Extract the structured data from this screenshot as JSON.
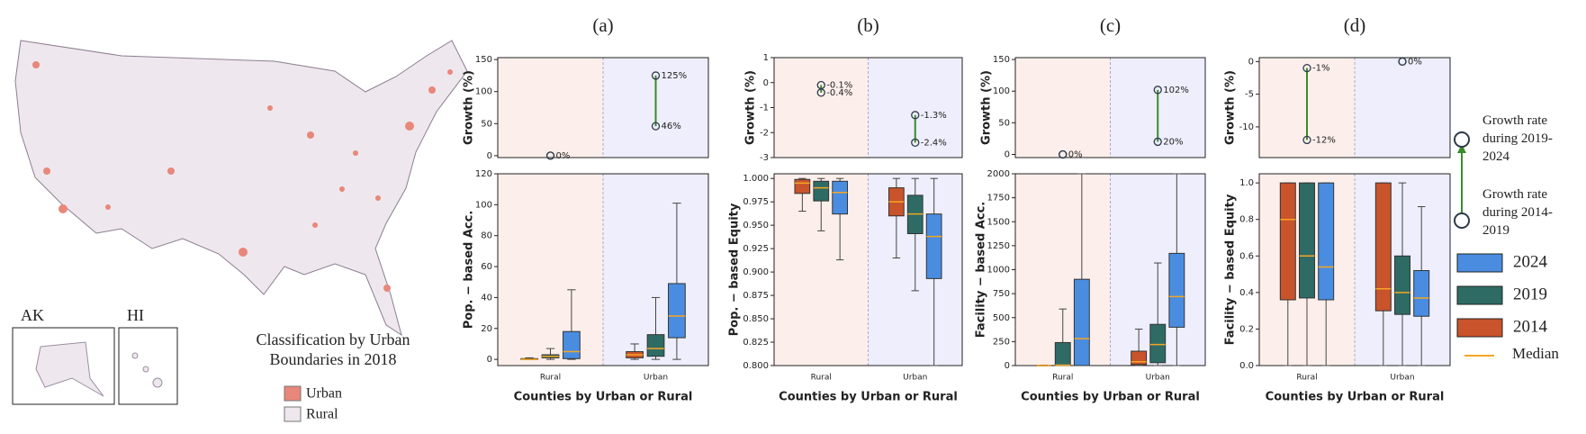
{
  "map": {
    "title": "Classification by Urban Boundaries in 2018",
    "insets": [
      "AK",
      "HI"
    ],
    "legend": [
      {
        "name": "Urban",
        "color": "#e8877a"
      },
      {
        "name": "Rural",
        "color": "#efe7ee"
      }
    ]
  },
  "legend": {
    "growth_later": "Growth rate during 2019-2024",
    "growth_earlier": "Growth rate during 2014-2019",
    "median": "Median",
    "median_color": "#f5a623"
  },
  "chart_data": [
    {
      "type": "dumbbell",
      "title": "(a)",
      "ylabel": "Growth (%)",
      "categories": [
        null,
        null
      ],
      "region_colors": [
        "#fcefeb",
        "#eeeefc"
      ],
      "ylim": [
        -3,
        153
      ],
      "yticks": [
        0,
        50,
        100,
        150
      ],
      "line_color": "#3a8a2a",
      "marker_color": "#2d3a4a",
      "earlier": {
        "values": [
          0,
          46
        ],
        "value_labels": [
          "0%",
          "46%"
        ]
      },
      "later": {
        "values": [
          0,
          125
        ],
        "value_labels": [
          null,
          "125%"
        ]
      }
    },
    {
      "type": "box",
      "ylabel": "Pop. − based Acc.",
      "xlabel": "Counties by Urban or Rural",
      "categories": [
        "Rural",
        "Urban"
      ],
      "region_colors": [
        "#fcefeb",
        "#eeeefc"
      ],
      "ylim": [
        -4,
        120
      ],
      "yticks": [
        0,
        20,
        40,
        60,
        80,
        100,
        120
      ],
      "median_color": "#f5a623",
      "series": [
        {
          "name": "2014",
          "color": "#c9532b",
          "values": [
            {
              "min": 0,
              "q1": 0,
              "median": 0,
              "q3": 0.5,
              "max": 1
            },
            {
              "min": 0,
              "q1": 1,
              "median": 3,
              "q3": 5,
              "max": 10
            }
          ]
        },
        {
          "name": "2019",
          "color": "#2e6b65",
          "values": [
            {
              "min": 0,
              "q1": 1,
              "median": 2,
              "q3": 3,
              "max": 7
            },
            {
              "min": 0,
              "q1": 2,
              "median": 7,
              "q3": 16,
              "max": 40
            }
          ]
        },
        {
          "name": "2024",
          "color": "#4a8de0",
          "values": [
            {
              "min": 0,
              "q1": 0.5,
              "median": 5,
              "q3": 18,
              "max": 45
            },
            {
              "min": 0,
              "q1": 14,
              "median": 28,
              "q3": 49,
              "max": 101
            }
          ]
        }
      ]
    },
    {
      "type": "dumbbell",
      "title": "(b)",
      "ylabel": "Growth (%)",
      "categories": [
        null,
        null
      ],
      "region_colors": [
        "#fcefeb",
        "#eeeefc"
      ],
      "ylim": [
        -3,
        1
      ],
      "yticks": [
        -3,
        -2,
        -1,
        0,
        1
      ],
      "line_color": "#3a8a2a",
      "marker_color": "#2d3a4a",
      "earlier": {
        "values": [
          -0.4,
          -2.4
        ],
        "value_labels": [
          "-0.4%",
          "-2.4%"
        ]
      },
      "later": {
        "values": [
          -0.1,
          -1.3
        ],
        "value_labels": [
          "-0.1%",
          "-1.3%"
        ]
      }
    },
    {
      "type": "box",
      "ylabel": "Pop. − based Equity",
      "xlabel": "Counties by Urban or Rural",
      "categories": [
        "Rural",
        "Urban"
      ],
      "region_colors": [
        "#fcefeb",
        "#eeeefc"
      ],
      "ylim": [
        0.8,
        1.005
      ],
      "yticks": [
        {
          "value": 0.8,
          "label": "0.800"
        },
        {
          "value": 0.825,
          "label": "0.825"
        },
        {
          "value": 0.85,
          "label": "0.850"
        },
        {
          "value": 0.875,
          "label": "0.875"
        },
        {
          "value": 0.9,
          "label": "0.900"
        },
        {
          "value": 0.925,
          "label": "0.925"
        },
        {
          "value": 0.95,
          "label": "0.950"
        },
        {
          "value": 0.975,
          "label": "0.975"
        },
        {
          "value": 1,
          "label": "1.000"
        }
      ],
      "median_color": "#f5a623",
      "series": [
        {
          "name": "2014",
          "color": "#c9532b",
          "values": [
            {
              "min": 0.965,
              "q1": 0.984,
              "median": 0.995,
              "q3": 0.999,
              "max": 1
            },
            {
              "min": 0.915,
              "q1": 0.96,
              "median": 0.975,
              "q3": 0.99,
              "max": 1
            }
          ]
        },
        {
          "name": "2019",
          "color": "#2e6b65",
          "values": [
            {
              "min": 0.944,
              "q1": 0.976,
              "median": 0.99,
              "q3": 0.997,
              "max": 1
            },
            {
              "min": 0.88,
              "q1": 0.941,
              "median": 0.962,
              "q3": 0.982,
              "max": 1
            }
          ]
        },
        {
          "name": "2024",
          "color": "#4a8de0",
          "values": [
            {
              "min": 0.913,
              "q1": 0.962,
              "median": 0.985,
              "q3": 0.997,
              "max": 1
            },
            {
              "min": 0.8,
              "q1": 0.893,
              "median": 0.938,
              "q3": 0.962,
              "max": 1
            }
          ]
        }
      ]
    },
    {
      "type": "dumbbell",
      "title": "(c)",
      "ylabel": "Growth (%)",
      "categories": [
        null,
        null
      ],
      "region_colors": [
        "#fcefeb",
        "#eeeefc"
      ],
      "ylim": [
        -5,
        153
      ],
      "yticks": [
        0,
        50,
        100,
        150
      ],
      "line_color": "#3a8a2a",
      "marker_color": "#2d3a4a",
      "earlier": {
        "values": [
          0,
          20
        ],
        "value_labels": [
          "0%",
          "20%"
        ]
      },
      "later": {
        "values": [
          0,
          102
        ],
        "value_labels": [
          null,
          "102%"
        ]
      }
    },
    {
      "type": "box",
      "ylabel": "Facility − based Acc.",
      "xlabel": "Counties by Urban or Rural",
      "categories": [
        "Rural",
        "Urban"
      ],
      "region_colors": [
        "#fcefeb",
        "#eeeefc"
      ],
      "ylim": [
        0,
        2000
      ],
      "yticks": [
        0,
        250,
        500,
        750,
        1000,
        1250,
        1500,
        1750,
        2000
      ],
      "median_color": "#f5a623",
      "series": [
        {
          "name": "2014",
          "color": "#c9532b",
          "values": [
            {
              "min": 0,
              "q1": 0,
              "median": 0,
              "q3": 2,
              "max": 5
            },
            {
              "min": 0,
              "q1": 10,
              "median": 40,
              "q3": 150,
              "max": 380
            }
          ]
        },
        {
          "name": "2019",
          "color": "#2e6b65",
          "values": [
            {
              "min": 0,
              "q1": 0,
              "median": 5,
              "q3": 240,
              "max": 590
            },
            {
              "min": 0,
              "q1": 30,
              "median": 220,
              "q3": 430,
              "max": 1070
            }
          ]
        },
        {
          "name": "2024",
          "color": "#4a8de0",
          "values": [
            {
              "min": 0,
              "q1": 0,
              "median": 280,
              "q3": 900,
              "max": 2000
            },
            {
              "min": 0,
              "q1": 400,
              "median": 720,
              "q3": 1170,
              "max": 2000
            }
          ]
        }
      ]
    },
    {
      "type": "dumbbell",
      "title": "(d)",
      "ylabel": "Growth (%)",
      "categories": [
        null,
        null
      ],
      "region_colors": [
        "#fcefeb",
        "#eeeefc"
      ],
      "ylim": [
        -14.7,
        0.6
      ],
      "yticks": [
        -10,
        -5,
        0
      ],
      "line_color": "#3a8a2a",
      "marker_color": "#2d3a4a",
      "earlier": {
        "values": [
          -12,
          0
        ],
        "value_labels": [
          "-12%",
          "0%"
        ]
      },
      "later": {
        "values": [
          -1,
          0
        ],
        "value_labels": [
          "-1%",
          null
        ]
      }
    },
    {
      "type": "box",
      "ylabel": "Facility − based Equity",
      "xlabel": "Counties by Urban or Rural",
      "categories": [
        "Rural",
        "Urban"
      ],
      "region_colors": [
        "#fcefeb",
        "#eeeefc"
      ],
      "ylim": [
        0,
        1.05
      ],
      "yticks": [
        {
          "value": 0,
          "label": "0.0"
        },
        0.2,
        0.4,
        0.6,
        0.8,
        {
          "value": 1,
          "label": "1.0"
        }
      ],
      "median_color": "#f5a623",
      "series": [
        {
          "name": "2014",
          "color": "#c9532b",
          "values": [
            {
              "min": 0,
              "q1": 0.36,
              "median": 0.8,
              "q3": 1,
              "max": 1
            },
            {
              "min": 0,
              "q1": 0.3,
              "median": 0.42,
              "q3": 1,
              "max": 1
            }
          ]
        },
        {
          "name": "2019",
          "color": "#2e6b65",
          "values": [
            {
              "min": 0,
              "q1": 0.37,
              "median": 0.6,
              "q3": 1,
              "max": 1
            },
            {
              "min": 0,
              "q1": 0.28,
              "median": 0.4,
              "q3": 0.6,
              "max": 1
            }
          ]
        },
        {
          "name": "2024",
          "color": "#4a8de0",
          "values": [
            {
              "min": 0,
              "q1": 0.36,
              "median": 0.54,
              "q3": 1,
              "max": 1
            },
            {
              "min": 0,
              "q1": 0.27,
              "median": 0.37,
              "q3": 0.52,
              "max": 0.87
            }
          ]
        }
      ]
    }
  ]
}
